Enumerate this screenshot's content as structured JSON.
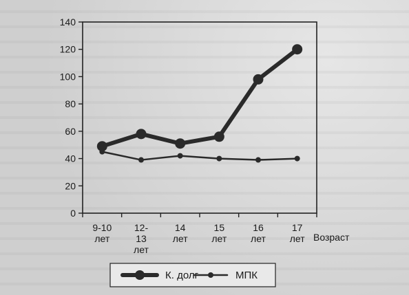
{
  "chart_data": {
    "type": "line",
    "categories": [
      "9-10\nлет",
      "12-\n13\nлет",
      "14\nлет",
      "15\nлет",
      "16\nлет",
      "17\nлет"
    ],
    "xlabel": "Возраст",
    "ylabel": "",
    "ylim": [
      0,
      140
    ],
    "yticks": [
      0,
      20,
      40,
      60,
      80,
      100,
      120,
      140
    ],
    "grid": false,
    "legend_position": "bottom",
    "series": [
      {
        "name": "К. долг",
        "values": [
          49,
          58,
          51,
          56,
          98,
          120
        ],
        "color": "#2a2a2a",
        "style": "thick"
      },
      {
        "name": "МПК",
        "values": [
          45,
          39,
          42,
          40,
          39,
          40
        ],
        "color": "#2a2a2a",
        "style": "thin"
      }
    ]
  }
}
